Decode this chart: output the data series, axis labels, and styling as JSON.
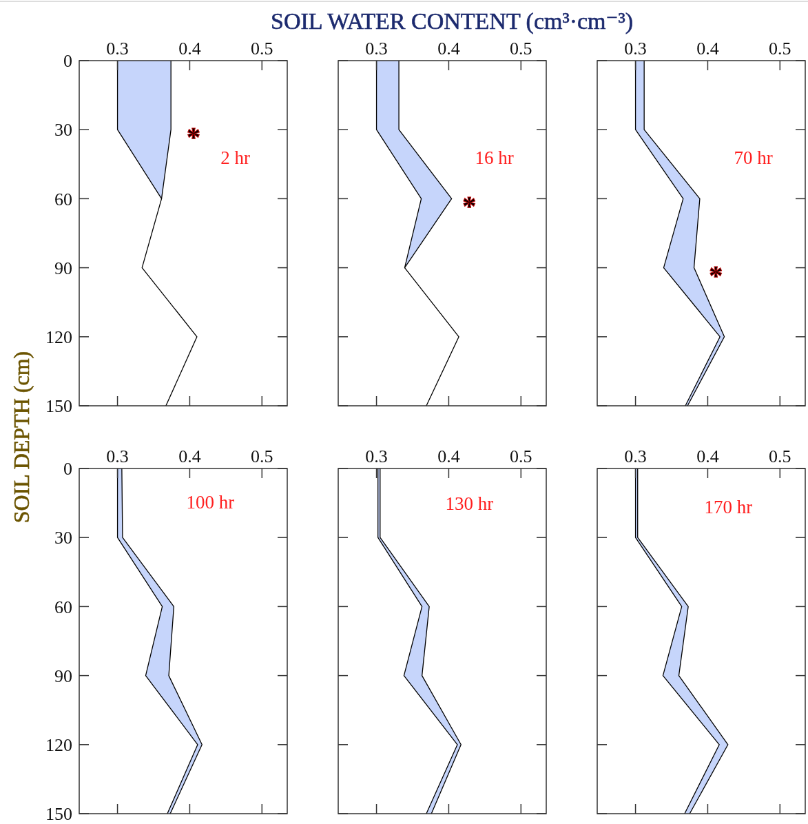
{
  "chart_data": [
    {
      "type": "line",
      "orientation": "horizontal",
      "xlabel": "SOIL WATER CONTENT (cm³·cm⁻³)",
      "ylabel": "SOIL DEPTH (cm)",
      "xlim": [
        0.247,
        0.535
      ],
      "xticks": [
        0.3,
        0.4,
        0.5
      ],
      "categories": [
        "0",
        "30",
        "60",
        "90",
        "120",
        "150"
      ],
      "annotations": [
        "2 hr",
        "*"
      ],
      "series": [
        {
          "color": "#000000",
          "values": [
            0.3,
            0.3,
            0.361,
            0.334,
            0.41,
            0.367
          ],
          "lower": [
            0.3,
            0.3,
            0.361,
            0.334,
            0.41,
            0.367
          ],
          "upper": [
            0.374,
            0.374,
            0.361,
            0.334,
            0.41,
            0.367
          ]
        },
        {
          "color": "#000000",
          "values": [
            0.374,
            0.374,
            0.361,
            null,
            null,
            null
          ]
        }
      ]
    },
    {
      "type": "line",
      "orientation": "horizontal",
      "tick_labels": "x",
      "xlim": [
        0.247,
        0.535
      ],
      "xticks": [
        0.3,
        0.4,
        0.5
      ],
      "categories": [
        "0",
        "30",
        "60",
        "90",
        "120",
        "150"
      ],
      "annotations": [
        "16 hr",
        "*"
      ],
      "series": [
        {
          "color": "#000000",
          "values": [
            0.3,
            0.3,
            0.362,
            0.339,
            0.414,
            0.369
          ],
          "lower": [
            0.3,
            0.3,
            0.362,
            0.339,
            0.414,
            0.369
          ],
          "upper": [
            0.331,
            0.331,
            0.404,
            0.339,
            0.414,
            0.369
          ]
        },
        {
          "color": "#000000",
          "values": [
            0.331,
            0.331,
            0.404,
            0.339,
            null,
            null
          ]
        }
      ]
    },
    {
      "type": "line",
      "orientation": "horizontal",
      "tick_labels": "x",
      "xlim": [
        0.247,
        0.535
      ],
      "xticks": [
        0.3,
        0.4,
        0.5
      ],
      "categories": [
        "0",
        "30",
        "60",
        "90",
        "120",
        "150"
      ],
      "annotations": [
        "70 hr",
        "*"
      ],
      "series": [
        {
          "color": "#000000",
          "values": [
            0.3,
            0.3,
            0.366,
            0.339,
            0.417,
            0.369
          ],
          "lower": [
            0.3,
            0.3,
            0.366,
            0.339,
            0.417,
            0.369
          ],
          "upper": [
            0.312,
            0.312,
            0.389,
            0.381,
            0.423,
            0.372
          ]
        },
        {
          "color": "#000000",
          "values": [
            0.312,
            0.312,
            0.389,
            0.381,
            0.423,
            0.372
          ]
        }
      ]
    },
    {
      "type": "line",
      "orientation": "horizontal",
      "xlim": [
        0.247,
        0.535
      ],
      "xticks": [
        0.3,
        0.4,
        0.5
      ],
      "categories": [
        "0",
        "30",
        "60",
        "90",
        "120",
        "150"
      ],
      "annotations": [
        "100 hr"
      ],
      "series": [
        {
          "color": "#000000",
          "values": [
            0.3,
            0.3,
            0.362,
            0.339,
            0.411,
            0.369
          ],
          "lower": [
            0.3,
            0.3,
            0.362,
            0.339,
            0.411,
            0.369
          ],
          "upper": [
            0.306,
            0.307,
            0.378,
            0.371,
            0.417,
            0.373
          ]
        },
        {
          "color": "#000000",
          "values": [
            0.306,
            0.307,
            0.378,
            0.371,
            0.417,
            0.373
          ]
        }
      ]
    },
    {
      "type": "line",
      "orientation": "horizontal",
      "tick_labels": "x",
      "xlim": [
        0.247,
        0.535
      ],
      "xticks": [
        0.3,
        0.4,
        0.5
      ],
      "categories": [
        "0",
        "30",
        "60",
        "90",
        "120",
        "150"
      ],
      "annotations": [
        "130 hr"
      ],
      "series": [
        {
          "color": "#000000",
          "values": [
            0.302,
            0.302,
            0.363,
            0.338,
            0.412,
            0.369
          ],
          "lower": [
            0.302,
            0.302,
            0.363,
            0.338,
            0.412,
            0.369
          ],
          "upper": [
            0.305,
            0.305,
            0.373,
            0.363,
            0.417,
            0.376
          ]
        },
        {
          "color": "#000000",
          "values": [
            0.305,
            0.305,
            0.373,
            0.363,
            0.417,
            0.376
          ]
        }
      ]
    },
    {
      "type": "line",
      "orientation": "horizontal",
      "tick_labels": "x",
      "xlim": [
        0.247,
        0.535
      ],
      "xticks": [
        0.3,
        0.4,
        0.5
      ],
      "categories": [
        "0",
        "30",
        "60",
        "90",
        "120",
        "150"
      ],
      "annotations": [
        "170 hr"
      ],
      "series": [
        {
          "color": "#000000",
          "values": [
            0.3,
            0.3,
            0.364,
            0.338,
            0.416,
            0.368
          ],
          "lower": [
            0.3,
            0.3,
            0.364,
            0.338,
            0.416,
            0.368
          ],
          "upper": [
            0.303,
            0.303,
            0.373,
            0.36,
            0.428,
            0.375
          ]
        },
        {
          "color": "#000000",
          "values": [
            0.303,
            0.303,
            0.373,
            0.36,
            0.428,
            0.375
          ]
        }
      ]
    }
  ]
}
